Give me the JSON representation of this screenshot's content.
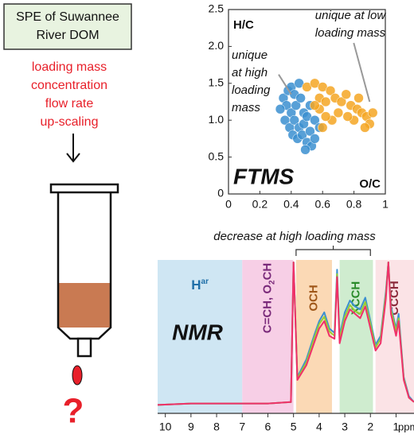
{
  "left_panel": {
    "box_lines": [
      "SPE of Suwannee",
      "River DOM"
    ],
    "conditions": [
      "loading mass",
      "concentration",
      "flow rate",
      "up-scaling"
    ],
    "question": "?"
  },
  "chart_data": [
    {
      "type": "scatter",
      "ylabel": "H/C",
      "xlabel": "O/C",
      "label": "FTMS",
      "annotations": [
        {
          "lines": [
            "unique",
            "at high",
            "loading",
            "mass"
          ],
          "target": [
            0.4,
            1.35
          ]
        },
        {
          "lines": [
            "unique at low",
            "loading mass"
          ],
          "target": [
            0.9,
            1.25
          ]
        }
      ],
      "series": [
        {
          "color": "#3b8fd0",
          "x": [
            0.35,
            0.38,
            0.4,
            0.42,
            0.45,
            0.37,
            0.4,
            0.43,
            0.46,
            0.48,
            0.36,
            0.39,
            0.42,
            0.45,
            0.48,
            0.5,
            0.41,
            0.44,
            0.47,
            0.5,
            0.52,
            0.53,
            0.49,
            0.55,
            0.33,
            0.52,
            0.55,
            0.58
          ],
          "values": [
            1.3,
            1.4,
            1.45,
            1.35,
            1.5,
            1.2,
            1.1,
            1.2,
            1.3,
            1.1,
            1.0,
            0.9,
            1.0,
            0.9,
            0.95,
            1.05,
            0.8,
            0.75,
            0.8,
            0.7,
            0.85,
            0.65,
            0.6,
            0.75,
            1.15,
            1.2,
            1.0,
            0.9
          ]
        },
        {
          "color": "#f5a623",
          "x": [
            0.5,
            0.55,
            0.6,
            0.65,
            0.58,
            0.62,
            0.68,
            0.72,
            0.75,
            0.78,
            0.82,
            0.85,
            0.88,
            0.9,
            0.87,
            0.8,
            0.76,
            0.7,
            0.66,
            0.62,
            0.58,
            0.92,
            0.83,
            0.6,
            0.55
          ],
          "values": [
            1.45,
            1.5,
            1.45,
            1.4,
            1.3,
            1.25,
            1.3,
            1.25,
            1.35,
            1.2,
            1.15,
            1.1,
            1.05,
            0.95,
            0.9,
            1.0,
            1.05,
            1.1,
            1.0,
            1.05,
            1.15,
            1.1,
            1.3,
            0.9,
            1.2
          ]
        }
      ],
      "xlim": [
        0,
        1
      ],
      "xticks": [
        0,
        0.2,
        0.4,
        0.6,
        0.8,
        1
      ],
      "ylim": [
        0,
        2.5
      ],
      "yticks": [
        0,
        0.5,
        {
          "value": 1,
          "label": "1.0"
        },
        1.5,
        {
          "value": 2,
          "label": "2.0"
        },
        2.5
      ]
    },
    {
      "type": "line",
      "label": "NMR",
      "xlabel": "ppm",
      "annotation": {
        "text": "decrease at high loading mass",
        "from": 4.9,
        "to": 2.0
      },
      "regions": [
        {
          "parts": [
            {
              "text": "H"
            },
            {
              "text": "ar",
              "sup": true
            }
          ],
          "from": 10.3,
          "to": 7,
          "color": "#cfe6f3",
          "text_color": "#1f6fa8",
          "rotate": false
        },
        {
          "parts": [
            {
              "text": "C=CH, O"
            },
            {
              "text": "2",
              "sub": true
            },
            {
              "text": "CH"
            }
          ],
          "from": 7,
          "to": 5,
          "color": "#f7cfe6",
          "text_color": "#7a2a7a",
          "rotate": true
        },
        {
          "parts": [
            {
              "text": "OCH"
            }
          ],
          "from": 4.9,
          "to": 3.5,
          "color": "#fbd9b5",
          "text_color": "#a0581a",
          "rotate": true
        },
        {
          "parts": [
            {
              "text": "XCCH"
            }
          ],
          "from": 3.2,
          "to": 1.9,
          "color": "#cfeccf",
          "text_color": "#2a8a2a",
          "rotate": true
        },
        {
          "parts": [
            {
              "text": "CCCH"
            }
          ],
          "from": 1.8,
          "to": 0.3,
          "color": "#fbe3e6",
          "text_color": "#8a2a3a",
          "rotate": true
        }
      ],
      "x": [
        10.3,
        9,
        8,
        7,
        6,
        5.1,
        5.0,
        4.85,
        4.5,
        4.2,
        4.0,
        3.8,
        3.6,
        3.4,
        3.3,
        3.2,
        3.0,
        2.8,
        2.6,
        2.4,
        2.2,
        2.0,
        1.8,
        1.6,
        1.4,
        1.3,
        1.2,
        1.0,
        0.9,
        0.7,
        0.5,
        0.3
      ],
      "series": [
        {
          "color": "#3b8fd0",
          "values": [
            3,
            4,
            4,
            4,
            4,
            5,
            100,
            22,
            34,
            50,
            60,
            66,
            55,
            52,
            95,
            50,
            66,
            74,
            70,
            68,
            76,
            60,
            44,
            50,
            80,
            100,
            70,
            55,
            65,
            22,
            9,
            5
          ]
        },
        {
          "color": "#9acd32",
          "values": [
            3,
            4,
            4,
            4,
            4,
            5,
            100,
            21,
            32,
            48,
            58,
            63,
            53,
            50,
            92,
            48,
            63,
            71,
            67,
            65,
            73,
            58,
            42,
            48,
            78,
            100,
            68,
            53,
            62,
            21,
            8,
            5
          ]
        },
        {
          "color": "#f0306a",
          "values": [
            3,
            4,
            4,
            4,
            4,
            5,
            100,
            20,
            30,
            45,
            55,
            60,
            50,
            48,
            90,
            45,
            60,
            68,
            65,
            62,
            70,
            55,
            40,
            45,
            75,
            100,
            65,
            50,
            60,
            20,
            8,
            5
          ]
        }
      ],
      "xlim": [
        10.3,
        0.3
      ],
      "xticks": [
        10,
        9,
        8,
        7,
        6,
        5,
        4,
        3,
        2,
        1
      ],
      "ylim": [
        0,
        100
      ]
    }
  ]
}
